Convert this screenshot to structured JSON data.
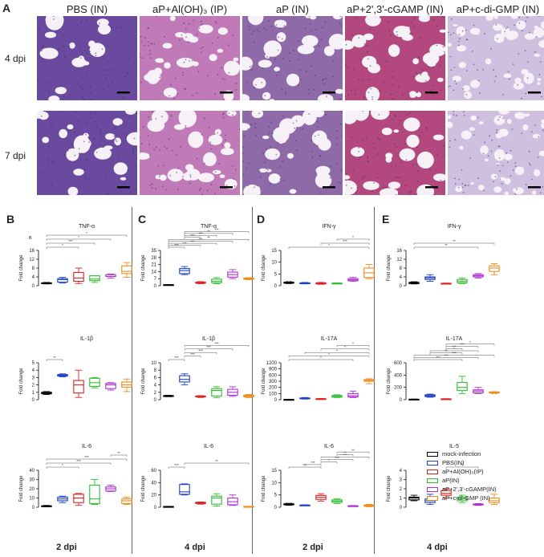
{
  "panel_a": {
    "label": "A",
    "columns": [
      "PBS (IN)",
      "aP+Al(OH)₃ (IP)",
      "aP (IN)",
      "aP+2',3'-cGAMP (IN)",
      "aP+c-di-GMP (IN)"
    ],
    "rows": [
      "4 dpi",
      "7 dpi"
    ],
    "stain_colors": [
      "#6a4a9e",
      "#c07ab8",
      "#8e6aa8",
      "#b3487e",
      "#cfc0e0"
    ]
  },
  "panels": [
    {
      "label": "B",
      "footer": "2 dpi"
    },
    {
      "label": "C",
      "footer": "4 dpi"
    },
    {
      "label": "D",
      "footer": "2 dpi"
    },
    {
      "label": "E",
      "footer": "4 dpi"
    }
  ],
  "legend": {
    "items": [
      {
        "label": "mock-infection",
        "color": "#000000"
      },
      {
        "label": "PBS(IN)",
        "color": "#1f3fd0"
      },
      {
        "label": "aP+Al(OH)₃(IP)",
        "color": "#e02020"
      },
      {
        "label": "aP(IN)",
        "color": "#2fbf2f"
      },
      {
        "label": "aP+2',3'-cGAMP(IN)",
        "color": "#b030d8"
      },
      {
        "label": "aP+c-di-GMP (IN)",
        "color": "#f08c1a"
      }
    ]
  },
  "chart_data": [
    {
      "type": "box",
      "panel": "B",
      "title": "TNF-α",
      "ylabel": "Fold change",
      "ylim": [
        0,
        16
      ],
      "yticks": [
        0,
        4,
        8,
        12,
        16
      ],
      "ytick_labels": [
        "0",
        "4",
        "8",
        "12",
        "16"
      ],
      "extra_text": "B",
      "sig": [
        {
          "a": 0,
          "b": 2,
          "t": "*"
        },
        {
          "a": 0,
          "b": 3,
          "t": "***"
        },
        {
          "a": 0,
          "b": 4,
          "t": "*"
        },
        {
          "a": 0,
          "b": 5,
          "t": "*"
        }
      ],
      "boxes": [
        [
          0.8,
          1.0,
          1.1,
          1.3,
          1.5
        ],
        [
          1.2,
          1.6,
          2.8,
          3.2,
          3.8
        ],
        [
          1.0,
          2.0,
          3.5,
          6.0,
          8.0
        ],
        [
          1.5,
          2.3,
          3.0,
          4.5,
          4.5
        ],
        [
          3.5,
          4.2,
          4.2,
          5.0,
          5.3
        ],
        [
          3.8,
          5.5,
          6.5,
          9.0,
          10.5
        ]
      ]
    },
    {
      "type": "box",
      "panel": "B",
      "title": "IL-1β",
      "ylabel": "Fold change",
      "ylim": [
        0,
        5
      ],
      "yticks": [
        0,
        1,
        2,
        3,
        4,
        5
      ],
      "ytick_labels": [
        "0",
        "1",
        "2",
        "3",
        "4",
        "5"
      ],
      "sig": [
        {
          "a": 0,
          "b": 1,
          "t": "**"
        }
      ],
      "boxes": [
        [
          0.7,
          0.8,
          0.9,
          1.0,
          1.1
        ],
        [
          3.1,
          3.2,
          3.3,
          3.4,
          3.5
        ],
        [
          0.3,
          0.9,
          2.0,
          2.6,
          4.0
        ],
        [
          1.6,
          1.8,
          2.3,
          2.9,
          3.0
        ],
        [
          1.3,
          1.5,
          2.0,
          2.2,
          2.3
        ],
        [
          1.1,
          1.7,
          2.0,
          2.4,
          2.8
        ]
      ]
    },
    {
      "type": "box",
      "panel": "B",
      "title": "IL-6",
      "ylabel": "Fold change",
      "ylim": [
        0,
        40
      ],
      "yticks": [
        0,
        10,
        20,
        30,
        40
      ],
      "ytick_labels": [
        "0",
        "10",
        "20",
        "30",
        "40"
      ],
      "sig": [
        {
          "a": 0,
          "b": 2,
          "t": "*"
        },
        {
          "a": 0,
          "b": 4,
          "t": "***"
        },
        {
          "a": 0,
          "b": 5,
          "t": "***"
        },
        {
          "a": 4,
          "b": 5,
          "t": "**"
        }
      ],
      "boxes": [
        [
          0.5,
          1.0,
          1.2,
          1.5,
          2.0
        ],
        [
          5.0,
          7.0,
          9.0,
          11.0,
          12.0
        ],
        [
          2.0,
          5.0,
          10.0,
          14.0,
          15.0
        ],
        [
          3.0,
          4.0,
          9.0,
          24.0,
          30.0
        ],
        [
          17.0,
          17.5,
          20.0,
          22.0,
          24.0
        ],
        [
          3.0,
          4.0,
          7.0,
          9.0,
          11.0
        ]
      ]
    },
    {
      "type": "box",
      "panel": "C",
      "title": "TNF-α",
      "ylabel": "Fold change",
      "ylim": [
        0,
        35
      ],
      "yticks": [
        0,
        7,
        14,
        21,
        28,
        35
      ],
      "ytick_labels": [
        "0",
        "7",
        "14",
        "21",
        "28",
        "35"
      ],
      "sig": [
        {
          "a": 0,
          "b": 1,
          "t": "***"
        },
        {
          "a": 0,
          "b": 2,
          "t": "***"
        },
        {
          "a": 0,
          "b": 3,
          "t": "***"
        },
        {
          "a": 0,
          "b": 4,
          "t": "***"
        },
        {
          "a": 0,
          "b": 5,
          "t": "**"
        },
        {
          "a": 1,
          "b": 2,
          "t": "***"
        },
        {
          "a": 1,
          "b": 3,
          "t": "***"
        },
        {
          "a": 1,
          "b": 4,
          "t": "**"
        },
        {
          "a": 1,
          "b": 5,
          "t": "***"
        }
      ],
      "boxes": [
        [
          0.6,
          0.8,
          0.9,
          1.0,
          1.2
        ],
        [
          11.0,
          12.0,
          15.0,
          17.0,
          19.0
        ],
        [
          2.0,
          2.5,
          3.0,
          3.5,
          4.0
        ],
        [
          2.0,
          3.0,
          4.5,
          6.5,
          8.0
        ],
        [
          7.0,
          8.5,
          11.0,
          13.5,
          16.0
        ],
        [
          6.0,
          6.5,
          7.0,
          7.5,
          8.0
        ]
      ]
    },
    {
      "type": "box",
      "panel": "C",
      "title": "IL-1β",
      "ylabel": "Fold change",
      "ylim": [
        0,
        10
      ],
      "yticks": [
        0,
        2,
        4,
        6,
        8,
        10
      ],
      "ytick_labels": [
        "0",
        "2",
        "4",
        "6",
        "8",
        "10"
      ],
      "sig": [
        {
          "a": 0,
          "b": 1,
          "t": "***"
        },
        {
          "a": 1,
          "b": 2,
          "t": "***"
        },
        {
          "a": 1,
          "b": 3,
          "t": "***"
        },
        {
          "a": 1,
          "b": 4,
          "t": "***"
        },
        {
          "a": 1,
          "b": 5,
          "t": "***"
        }
      ],
      "boxes": [
        [
          0.8,
          1.0,
          1.0,
          1.1,
          1.2
        ],
        [
          4.0,
          4.8,
          5.5,
          6.5,
          7.0
        ],
        [
          0.6,
          0.8,
          0.9,
          1.0,
          1.1
        ],
        [
          0.5,
          1.0,
          2.5,
          3.0,
          3.5
        ],
        [
          0.9,
          1.2,
          2.0,
          2.8,
          3.5
        ],
        [
          0.5,
          0.8,
          1.0,
          1.2,
          1.4
        ]
      ]
    },
    {
      "type": "box",
      "panel": "C",
      "title": "IL-6",
      "ylabel": "Fold change",
      "ylim": [
        0,
        60
      ],
      "yticks": [
        0,
        20,
        40,
        60
      ],
      "ytick_labels": [
        "0",
        "20",
        "40",
        "60"
      ],
      "sig": [
        {
          "a": 0,
          "b": 1,
          "t": "***"
        },
        {
          "a": 1,
          "b": 5,
          "t": "**"
        }
      ],
      "boxes": [
        [
          0.5,
          0.8,
          1.0,
          1.2,
          1.5
        ],
        [
          20.0,
          21.0,
          25.0,
          37.0,
          38.0
        ],
        [
          5.0,
          6.0,
          7.0,
          8.0,
          8.5
        ],
        [
          2.0,
          5.0,
          15.0,
          18.0,
          22.0
        ],
        [
          3.0,
          4.0,
          9.0,
          15.0,
          20.0
        ],
        [
          0.5,
          0.8,
          1.0,
          1.3,
          1.5
        ]
      ]
    },
    {
      "type": "box",
      "panel": "D",
      "title": "IFN-γ",
      "ylabel": "Fold change",
      "ylim": [
        0,
        15
      ],
      "yticks": [
        0,
        5,
        10,
        15
      ],
      "ytick_labels": [
        "0",
        "5",
        "10",
        "15"
      ],
      "sig": [
        {
          "a": 0,
          "b": 5,
          "t": "*"
        },
        {
          "a": 2,
          "b": 5,
          "t": "***"
        },
        {
          "a": 3,
          "b": 5,
          "t": "*"
        }
      ],
      "boxes": [
        [
          0.9,
          1.1,
          1.3,
          1.5,
          1.7
        ],
        [
          0.8,
          0.9,
          1.0,
          1.2,
          1.4
        ],
        [
          0.6,
          0.8,
          1.0,
          1.2,
          1.4
        ],
        [
          0.8,
          0.9,
          1.0,
          1.1,
          1.2
        ],
        [
          1.9,
          2.1,
          2.5,
          3.0,
          3.5
        ],
        [
          3.0,
          3.5,
          5.5,
          7.5,
          9.0
        ]
      ]
    },
    {
      "type": "box",
      "panel": "D",
      "title": "IL-17A",
      "ylabel": "Fold change",
      "ylim": [
        0,
        1200
      ],
      "yticks": [
        0,
        100,
        200,
        300,
        600,
        900,
        1200
      ],
      "ytick_labels": [
        "0",
        "100",
        "200",
        "300",
        "600",
        "900",
        "1200"
      ],
      "tick_scale": [
        [
          0,
          0
        ],
        [
          300,
          300
        ],
        [
          1200,
          600
        ]
      ],
      "sig": [
        {
          "a": 0,
          "b": 4,
          "t": "*"
        },
        {
          "a": 0,
          "b": 5,
          "t": "*"
        },
        {
          "a": 1,
          "b": 5,
          "t": "*"
        },
        {
          "a": 2,
          "b": 5,
          "t": "*"
        },
        {
          "a": 3,
          "b": 5,
          "t": "*"
        }
      ],
      "boxes": [
        [
          1,
          2,
          3,
          4,
          5
        ],
        [
          10,
          15,
          22,
          28,
          35
        ],
        [
          5,
          8,
          12,
          16,
          20
        ],
        [
          35,
          42,
          55,
          68,
          80
        ],
        [
          35,
          45,
          65,
          100,
          140
        ],
        [
          260,
          300,
          330,
          380,
          420
        ]
      ]
    },
    {
      "type": "box",
      "panel": "D",
      "title": "IL-6",
      "ylabel": "Fold change",
      "ylim": [
        0,
        15
      ],
      "yticks": [
        0,
        5,
        10,
        15
      ],
      "ytick_labels": [
        "0",
        "5",
        "10",
        "15"
      ],
      "sig": [
        {
          "a": 0,
          "b": 2,
          "t": "***"
        },
        {
          "a": 1,
          "b": 2,
          "t": "***"
        },
        {
          "a": 2,
          "b": 3,
          "t": "*"
        },
        {
          "a": 2,
          "b": 4,
          "t": "***"
        },
        {
          "a": 2,
          "b": 5,
          "t": "***"
        },
        {
          "a": 3,
          "b": 4,
          "t": "**"
        },
        {
          "a": 3,
          "b": 5,
          "t": "**"
        }
      ],
      "boxes": [
        [
          0.8,
          1.0,
          1.2,
          1.4,
          1.6
        ],
        [
          0.6,
          0.7,
          0.8,
          0.9,
          1.0
        ],
        [
          2.5,
          3.2,
          4.0,
          4.8,
          5.5
        ],
        [
          1.5,
          2.0,
          2.5,
          3.0,
          3.5
        ],
        [
          0.3,
          0.4,
          0.5,
          0.6,
          0.7
        ],
        [
          0.2,
          0.4,
          0.6,
          0.9,
          1.2
        ]
      ]
    },
    {
      "type": "box",
      "panel": "E",
      "title": "IFN-γ",
      "ylabel": "Fold change",
      "ylim": [
        0,
        16
      ],
      "yticks": [
        0,
        4,
        8,
        12,
        16
      ],
      "ytick_labels": [
        "0",
        "4",
        "8",
        "12",
        "16"
      ],
      "sig": [
        {
          "a": 0,
          "b": 4,
          "t": "**"
        },
        {
          "a": 0,
          "b": 5,
          "t": "**"
        }
      ],
      "boxes": [
        [
          0.8,
          1.0,
          1.2,
          1.5,
          1.8
        ],
        [
          2.0,
          2.8,
          3.5,
          4.0,
          5.0
        ],
        [
          0.8,
          0.9,
          1.0,
          1.1,
          1.2
        ],
        [
          1.0,
          1.3,
          2.0,
          2.8,
          3.5
        ],
        [
          3.5,
          4.0,
          4.5,
          5.0,
          5.5
        ],
        [
          5.0,
          6.5,
          8.0,
          9.0,
          10.0
        ]
      ]
    },
    {
      "type": "box",
      "panel": "E",
      "title": "IL-17A",
      "ylabel": "Fold change",
      "ylim": [
        0,
        600
      ],
      "yticks": [
        0,
        200,
        400,
        600
      ],
      "ytick_labels": [
        "0",
        "200",
        "400",
        "600"
      ],
      "sig": [
        {
          "a": 0,
          "b": 3,
          "t": "***"
        },
        {
          "a": 0,
          "b": 4,
          "t": "***"
        },
        {
          "a": 0,
          "b": 5,
          "t": "***"
        },
        {
          "a": 1,
          "b": 3,
          "t": "**"
        },
        {
          "a": 1,
          "b": 4,
          "t": "*"
        },
        {
          "a": 2,
          "b": 3,
          "t": "***"
        },
        {
          "a": 2,
          "b": 4,
          "t": "***"
        },
        {
          "a": 2,
          "b": 5,
          "t": "*"
        }
      ],
      "boxes": [
        [
          2,
          4,
          6,
          8,
          10
        ],
        [
          40,
          50,
          65,
          80,
          90
        ],
        [
          5,
          8,
          12,
          14,
          16
        ],
        [
          100,
          150,
          200,
          280,
          380
        ],
        [
          100,
          110,
          140,
          160,
          200
        ],
        [
          100,
          110,
          120,
          125,
          130
        ]
      ]
    },
    {
      "type": "box",
      "panel": "E",
      "title": "IL-5",
      "ylabel": "Fold change",
      "ylim": [
        0,
        4
      ],
      "yticks": [
        0,
        1,
        2,
        3,
        4
      ],
      "ytick_labels": [
        "0",
        "1",
        "2",
        "3",
        "4"
      ],
      "sig": [
        {
          "a": 2,
          "b": 4,
          "t": "**"
        }
      ],
      "boxes": [
        [
          0.7,
          0.8,
          1.0,
          1.1,
          1.3
        ],
        [
          0.3,
          0.5,
          0.7,
          0.9,
          1.4
        ],
        [
          1.0,
          1.3,
          1.5,
          1.8,
          2.0
        ],
        [
          0.5,
          0.7,
          0.9,
          1.1,
          1.3
        ],
        [
          0.2,
          0.25,
          0.3,
          0.35,
          0.4
        ],
        [
          0.3,
          0.5,
          0.7,
          1.0,
          1.4
        ]
      ]
    }
  ]
}
